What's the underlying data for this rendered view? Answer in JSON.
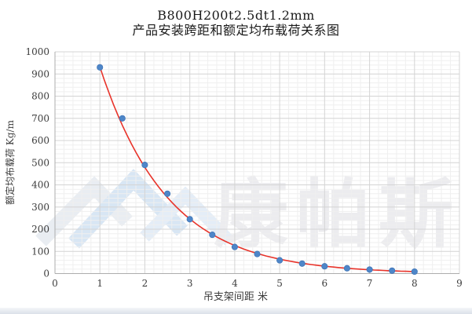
{
  "title": {
    "line1": "B800H200t2.5dt1.2mm",
    "line2": "产品安装跨距和额定均布载荷关系图"
  },
  "watermark": {
    "text": "康帕斯",
    "logo": "chevron-mountain-logo",
    "text_color": "#ececef",
    "logo_colors": [
      "#e9edf2",
      "#d8e6f4",
      "#e4edf7"
    ]
  },
  "chart_data": {
    "type": "scatter",
    "title": "B800H200t2.5dt1.2mm 产品安装跨距和额定均布载荷关系图",
    "xlabel": "吊支架间距  米",
    "ylabel": "额定均布载荷 Kg/m",
    "xlim": [
      0,
      9
    ],
    "ylim": [
      0,
      1000
    ],
    "x_ticks": [
      0,
      1,
      2,
      3,
      4,
      5,
      6,
      7,
      8,
      9
    ],
    "y_ticks": [
      0,
      100,
      200,
      300,
      400,
      500,
      600,
      700,
      800,
      900,
      1000
    ],
    "grid": "major and minor gridlines on, both axes",
    "legend": "none",
    "x": [
      1,
      1.5,
      2,
      2.5,
      3,
      3.5,
      4,
      4.5,
      5,
      5.5,
      6,
      6.5,
      7,
      7.5,
      8
    ],
    "series": [
      {
        "name": "额定均布载荷",
        "values": [
          930,
          700,
          490,
          360,
          245,
          175,
          120,
          88,
          60,
          45,
          33,
          24,
          18,
          13,
          9
        ],
        "marker": "circle",
        "marker_color": "#4E86C8"
      }
    ],
    "trendline": {
      "type": "exponential fit through scatter points, x from 1 to 8",
      "color": "#E8332A"
    }
  },
  "colors": {
    "marker": "#4E86C8",
    "marker_edge": "#3D72B4",
    "trendline": "#E8332A",
    "grid_major": "#D4D4D4",
    "grid_minor": "#EFEFEF",
    "axis_line": "#ADADAD",
    "tick_text": "#3c3c3c",
    "title_text": "#1a1a1a"
  }
}
